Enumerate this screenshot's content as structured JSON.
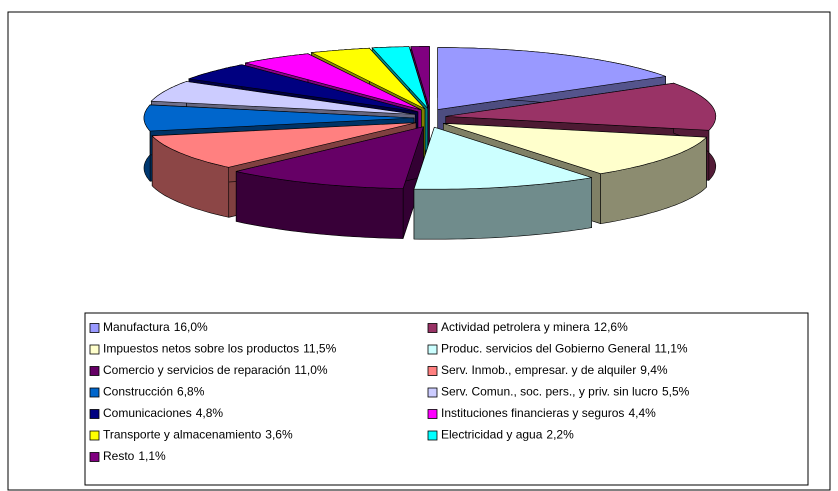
{
  "chart_data": {
    "type": "pie3d",
    "categories": [
      "Manufactura",
      "Actividad petrolera y minera",
      "Impuestos netos sobre los productos",
      "Produc. servicios del Gobierno General",
      "Comercio y servicios de reparación",
      "Serv. Inmob., empresar. y de alquiler",
      "Construcción",
      "Serv. Comun., soc. pers., y priv. sin lucro",
      "Comunicaciones",
      "Instituciones financieras y seguros",
      "Transporte y almacenamiento",
      "Electricidad y agua",
      "Resto"
    ],
    "values": [
      16.0,
      12.6,
      11.5,
      11.1,
      11.0,
      9.4,
      6.8,
      5.5,
      4.8,
      4.4,
      3.6,
      2.2,
      1.1
    ],
    "value_labels": [
      "16,0%",
      "12,6%",
      "11,5%",
      "11,1%",
      "11,0%",
      "9,4%",
      "6,8%",
      "5,5%",
      "4,8%",
      "4,4%",
      "3,6%",
      "2,2%",
      "1,1%"
    ],
    "colors": [
      "#9999ff",
      "#993366",
      "#ffffcc",
      "#ccffff",
      "#660066",
      "#ff8080",
      "#0066cc",
      "#ccccff",
      "#000080",
      "#ff00ff",
      "#ffff00",
      "#00ffff",
      "#800080"
    ],
    "legend": "bottom"
  }
}
